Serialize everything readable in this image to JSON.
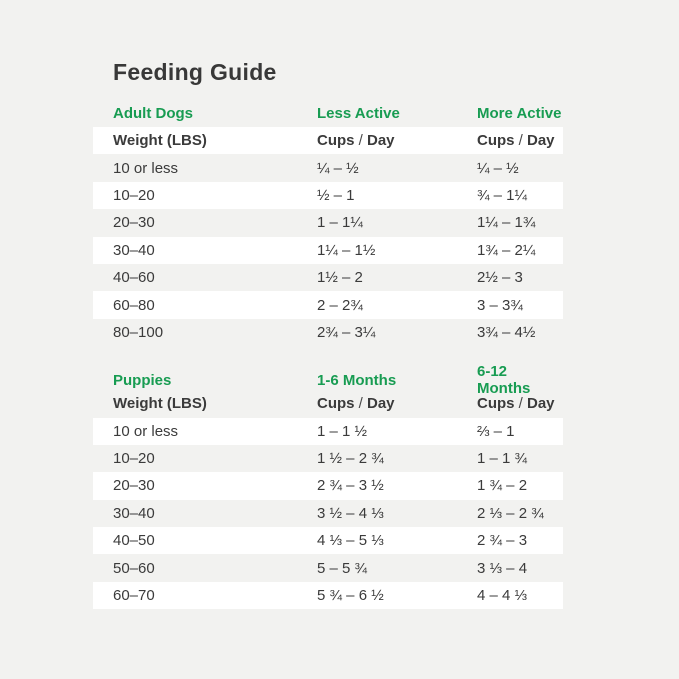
{
  "title": "Feeding Guide",
  "colors": {
    "accent_green": "#189c52",
    "page_background": "#f2f2f0",
    "row_highlight": "#ffffff",
    "text_dark": "#3b3b3b"
  },
  "tables": [
    {
      "id": "adult",
      "section_label": "Adult Dogs",
      "col2_header": "Less Active",
      "col3_header": "More Active",
      "weight_header": "Weight (LBS)",
      "col2_subheader": "Cups / Day",
      "col3_subheader": "Cups / Day",
      "rows": [
        {
          "weight": "10 or less",
          "col2": "¼ – ½",
          "col3": "¼ – ½"
        },
        {
          "weight": "10–20",
          "col2": "½ – 1",
          "col3": "¾ – 1¼"
        },
        {
          "weight": "20–30",
          "col2": "1 – 1¼",
          "col3": "1¼ – 1¾"
        },
        {
          "weight": "30–40",
          "col2": "1¼ – 1½",
          "col3": "1¾ – 2¼"
        },
        {
          "weight": "40–60",
          "col2": "1½ – 2",
          "col3": "2½ – 3"
        },
        {
          "weight": "60–80",
          "col2": "2 – 2¾",
          "col3": "3 – 3¾"
        },
        {
          "weight": "80–100",
          "col2": "2¾ – 3¼",
          "col3": "3¾ – 4½"
        }
      ]
    },
    {
      "id": "puppies",
      "section_label": "Puppies",
      "col2_header": "1-6 Months",
      "col3_header": "6-12 Months",
      "weight_header": "Weight (LBS)",
      "col2_subheader": "Cups / Day",
      "col3_subheader": "Cups / Day",
      "rows": [
        {
          "weight": "10 or less",
          "col2": "1 – 1 ½",
          "col3": "⅔ – 1"
        },
        {
          "weight": "10–20",
          "col2": "1 ½ – 2 ¾",
          "col3": "1 – 1 ¾"
        },
        {
          "weight": "20–30",
          "col2": "2 ¾ – 3 ½",
          "col3": "1 ¾ – 2"
        },
        {
          "weight": "30–40",
          "col2": "3 ½ – 4 ⅓",
          "col3": "2 ⅓ – 2 ¾"
        },
        {
          "weight": "40–50",
          "col2": "4 ⅓ – 5 ⅓",
          "col3": "2 ¾ – 3"
        },
        {
          "weight": "50–60",
          "col2": "5 – 5 ¾",
          "col3": "3 ⅓ – 4"
        },
        {
          "weight": "60–70",
          "col2": "5 ¾ – 6 ½",
          "col3": "4 – 4 ⅓"
        }
      ]
    }
  ]
}
